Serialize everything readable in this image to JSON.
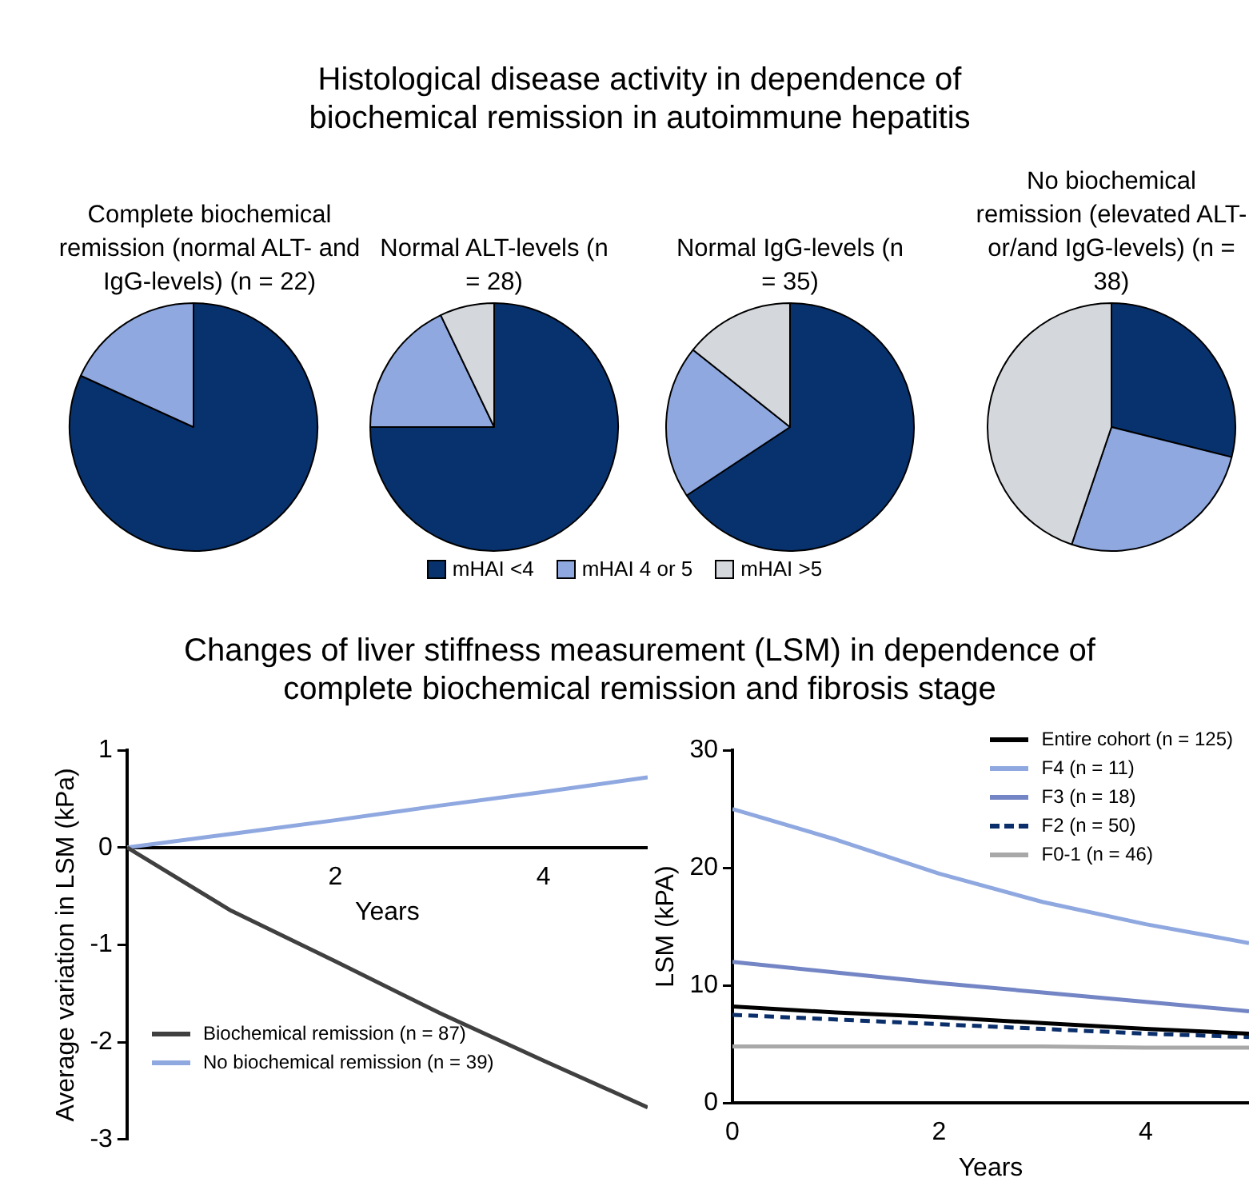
{
  "chart_data": [
    {
      "type": "pie",
      "title": "Complete biochemical remission (normal ALT- and IgG-levels) (n = 22)",
      "annotations": [
        "Histological disease activity in dependence of biochemical remission in autoimmune hepatitis"
      ],
      "categories": [
        "mHAI <4",
        "mHAI 4 or 5",
        "mHAI >5"
      ],
      "values": [
        81.8,
        18.2,
        0
      ],
      "colors": [
        "#08326e",
        "#8fa8e0",
        "#d4d7dc"
      ],
      "legend": "bottom"
    },
    {
      "type": "pie",
      "title": "Normal ALT-levels (n = 28)",
      "categories": [
        null,
        null,
        null
      ],
      "values": [
        75,
        17.9,
        7.1
      ],
      "colors": [
        "#08326e",
        "#8fa8e0",
        "#d4d7dc"
      ]
    },
    {
      "type": "pie",
      "title": "Normal IgG-levels (n = 35)",
      "categories": [
        null,
        null,
        null
      ],
      "values": [
        65.7,
        20,
        14.3
      ],
      "colors": [
        "#08326e",
        "#8fa8e0",
        "#d4d7dc"
      ]
    },
    {
      "type": "pie",
      "title": "No biochemical remission (elevated ALT-or/and IgG-levels) (n = 38)",
      "categories": [
        null,
        null,
        null
      ],
      "values": [
        28.9,
        26.3,
        44.8
      ],
      "colors": [
        "#08326e",
        "#8fa8e0",
        "#d4d7dc"
      ]
    },
    {
      "type": "line",
      "annotations": [
        "Changes of liver stiffness measurement (LSM) in dependence of complete biochemical remission and fibrosis stage"
      ],
      "xlabel": "Years",
      "ylabel": "Average variation in LSM (kPa)",
      "x": [
        0,
        1,
        2,
        3,
        4,
        5
      ],
      "xlim": [
        0,
        5
      ],
      "xticks": [
        2,
        4
      ],
      "ylim": [
        -3,
        1
      ],
      "yticks": [
        -3,
        -2,
        -1,
        0,
        1
      ],
      "legend": "bottom left",
      "series": [
        {
          "name": "Biochemical remission (n = 87)",
          "color": "#404040",
          "values": [
            0,
            -0.65,
            -1.17,
            -1.7,
            -2.19,
            -2.67
          ]
        },
        {
          "name": "No biochemical remission (n = 39)",
          "color": "#8fa8e0",
          "values": [
            0,
            0.14,
            0.28,
            0.43,
            0.57,
            0.72
          ]
        }
      ]
    },
    {
      "type": "line",
      "xlabel": "Years",
      "ylabel": "LSM (kPA)",
      "x": [
        0,
        1,
        2,
        3,
        4,
        5
      ],
      "xlim": [
        0,
        5
      ],
      "xticks": [
        0,
        2,
        4
      ],
      "ylim": [
        0,
        30
      ],
      "yticks": [
        0,
        10,
        20,
        30
      ],
      "legend": "top right",
      "series": [
        {
          "name": "Entire cohort (n = 125)",
          "color": "#000000",
          "values": [
            8.2,
            7.7,
            7.3,
            6.8,
            6.3,
            5.9
          ]
        },
        {
          "name": "F4 (n = 11)",
          "color": "#8fa8e0",
          "values": [
            25,
            22.4,
            19.5,
            17.1,
            15.2,
            13.6
          ]
        },
        {
          "name": "F3 (n = 18)",
          "color": "#7385c4",
          "values": [
            12,
            11.1,
            10.2,
            9.4,
            8.6,
            7.8
          ]
        },
        {
          "name": "F2 (n = 50)",
          "color": "#0b2f6b",
          "values": [
            7.5,
            7.1,
            6.7,
            6.3,
            5.9,
            5.6
          ],
          "line_style": "dashed"
        },
        {
          "name": "F0-1 (n = 46)",
          "color": "#a8a8a8",
          "values": [
            4.8,
            4.8,
            4.8,
            4.8,
            4.7,
            4.7
          ]
        }
      ]
    }
  ]
}
